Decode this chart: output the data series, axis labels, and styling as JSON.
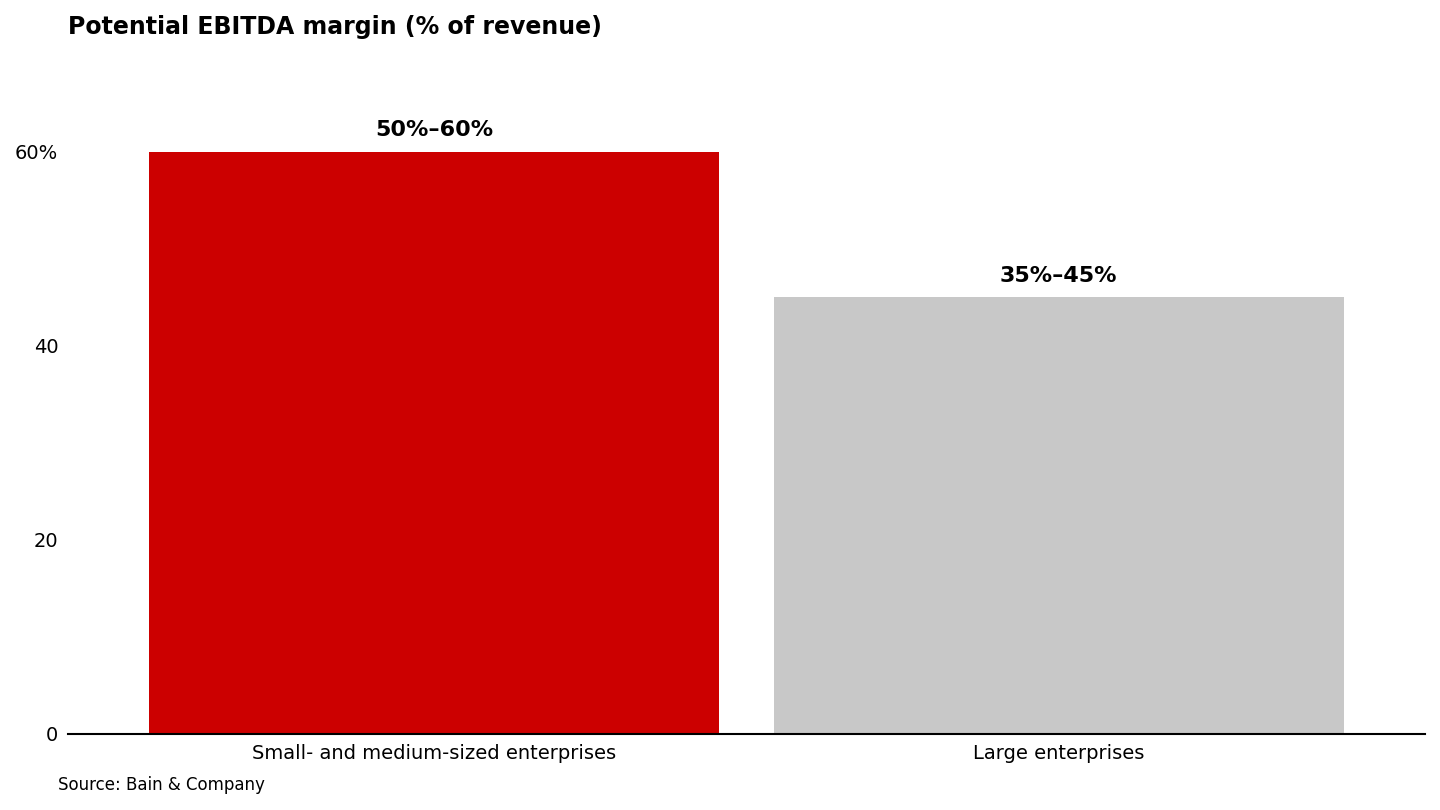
{
  "title": "Potential EBITDA margin (% of revenue)",
  "categories": [
    "Small- and medium-sized enterprises",
    "Large enterprises"
  ],
  "bar_low": [
    50,
    35
  ],
  "bar_high": [
    60,
    45
  ],
  "bar_solid_colors": [
    "#CC0000",
    "#C8C8C8"
  ],
  "bar_hatch_facecolor": [
    "#CC0000",
    "#C8C8C8"
  ],
  "bar_hatch_edgecolor": [
    "white",
    "white"
  ],
  "label_texts": [
    "50%–60%",
    "35%–45%"
  ],
  "ylim": [
    0,
    70
  ],
  "yticks": [
    0,
    20,
    40,
    60
  ],
  "ytick_labels": [
    "0",
    "20",
    "40",
    "60%"
  ],
  "source": "Source: Bain & Company",
  "background_color": "#FFFFFF",
  "title_fontsize": 17,
  "label_fontsize": 16,
  "tick_fontsize": 14,
  "source_fontsize": 12,
  "x_positions": [
    0.27,
    0.73
  ],
  "bar_width": 0.42
}
